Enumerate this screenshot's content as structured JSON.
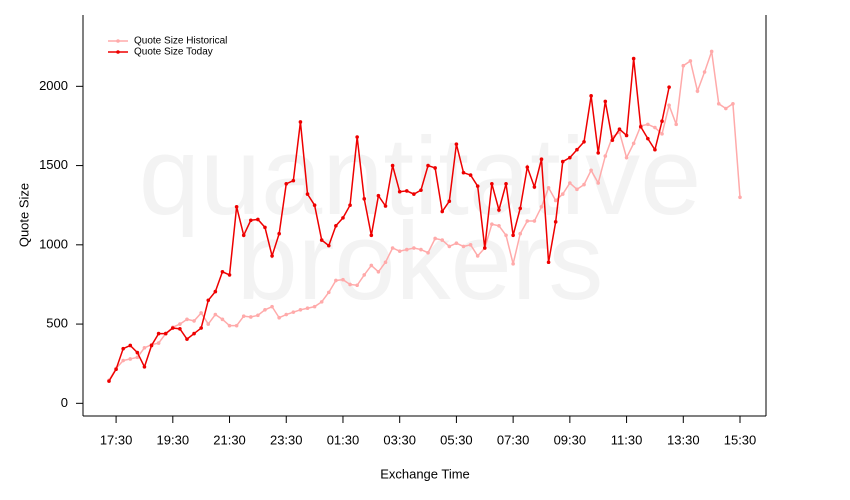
{
  "chart_data": {
    "type": "line",
    "watermark": [
      "quantitative",
      "brokers"
    ],
    "xlabel": "Exchange Time",
    "ylabel": "Quote Size",
    "legend": "upper left",
    "categories": [
      null,
      "17:30",
      null,
      null,
      null,
      null,
      null,
      null,
      null,
      "19:30",
      null,
      null,
      null,
      null,
      null,
      null,
      null,
      "21:30",
      null,
      null,
      null,
      null,
      null,
      null,
      null,
      "23:30",
      null,
      null,
      null,
      null,
      null,
      null,
      null,
      "01:30",
      null,
      null,
      null,
      null,
      null,
      null,
      null,
      "03:30",
      null,
      null,
      null,
      null,
      null,
      null,
      null,
      "05:30",
      null,
      null,
      null,
      null,
      null,
      null,
      null,
      "07:30",
      null,
      null,
      null,
      null,
      null,
      null,
      null,
      "09:30",
      null,
      null,
      null,
      null,
      null,
      null,
      null,
      "11:30",
      null,
      null,
      null,
      null,
      null,
      null,
      null,
      "13:30",
      null,
      null,
      null,
      null,
      null,
      null,
      null,
      "15:30"
    ],
    "series": [
      {
        "name": "Quote Size Historical",
        "color": "#ffaaaa",
        "values": [
          145,
          220,
          270,
          280,
          290,
          350,
          370,
          380,
          440,
          480,
          500,
          530,
          520,
          570,
          500,
          560,
          530,
          490,
          490,
          550,
          545,
          555,
          590,
          610,
          540,
          560,
          575,
          590,
          600,
          610,
          640,
          700,
          775,
          780,
          750,
          745,
          810,
          870,
          830,
          890,
          980,
          960,
          970,
          980,
          970,
          950,
          1040,
          1030,
          990,
          1010,
          990,
          1000,
          930,
          980,
          1130,
          1120,
          1060,
          880,
          1070,
          1150,
          1150,
          1240,
          1360,
          1280,
          1320,
          1390,
          1350,
          1380,
          1470,
          1390,
          1560,
          1680,
          1710,
          1550,
          1640,
          1750,
          1760,
          1740,
          1700,
          1880,
          1760,
          2130,
          2160,
          1970,
          2090,
          2220,
          1890,
          1860,
          1890,
          1300
        ]
      },
      {
        "name": "Quote Size Today",
        "color": "#ee0000",
        "values": [
          140,
          215,
          345,
          365,
          320,
          230,
          365,
          440,
          440,
          475,
          470,
          405,
          440,
          475,
          650,
          705,
          830,
          810,
          1240,
          1060,
          1155,
          1160,
          1110,
          930,
          1070,
          1385,
          1405,
          1775,
          1320,
          1250,
          1030,
          995,
          1120,
          1170,
          1250,
          1680,
          1290,
          1060,
          1310,
          1245,
          1500,
          1335,
          1340,
          1320,
          1345,
          1500,
          1485,
          1210,
          1275,
          1635,
          1455,
          1440,
          1370,
          980,
          1385,
          1220,
          1385,
          1060,
          1230,
          1490,
          1365,
          1540,
          890,
          1145,
          1525,
          1550,
          1600,
          1650,
          1940,
          1580,
          1905,
          1660,
          1730,
          1690,
          2175,
          1745,
          1670,
          1600,
          1780,
          1995,
          null,
          null,
          null,
          null,
          null,
          null,
          null,
          null,
          null,
          null
        ]
      }
    ],
    "ylim": [
      -80,
      2450
    ],
    "yticks": [
      0,
      500,
      1000,
      1500,
      2000
    ]
  }
}
